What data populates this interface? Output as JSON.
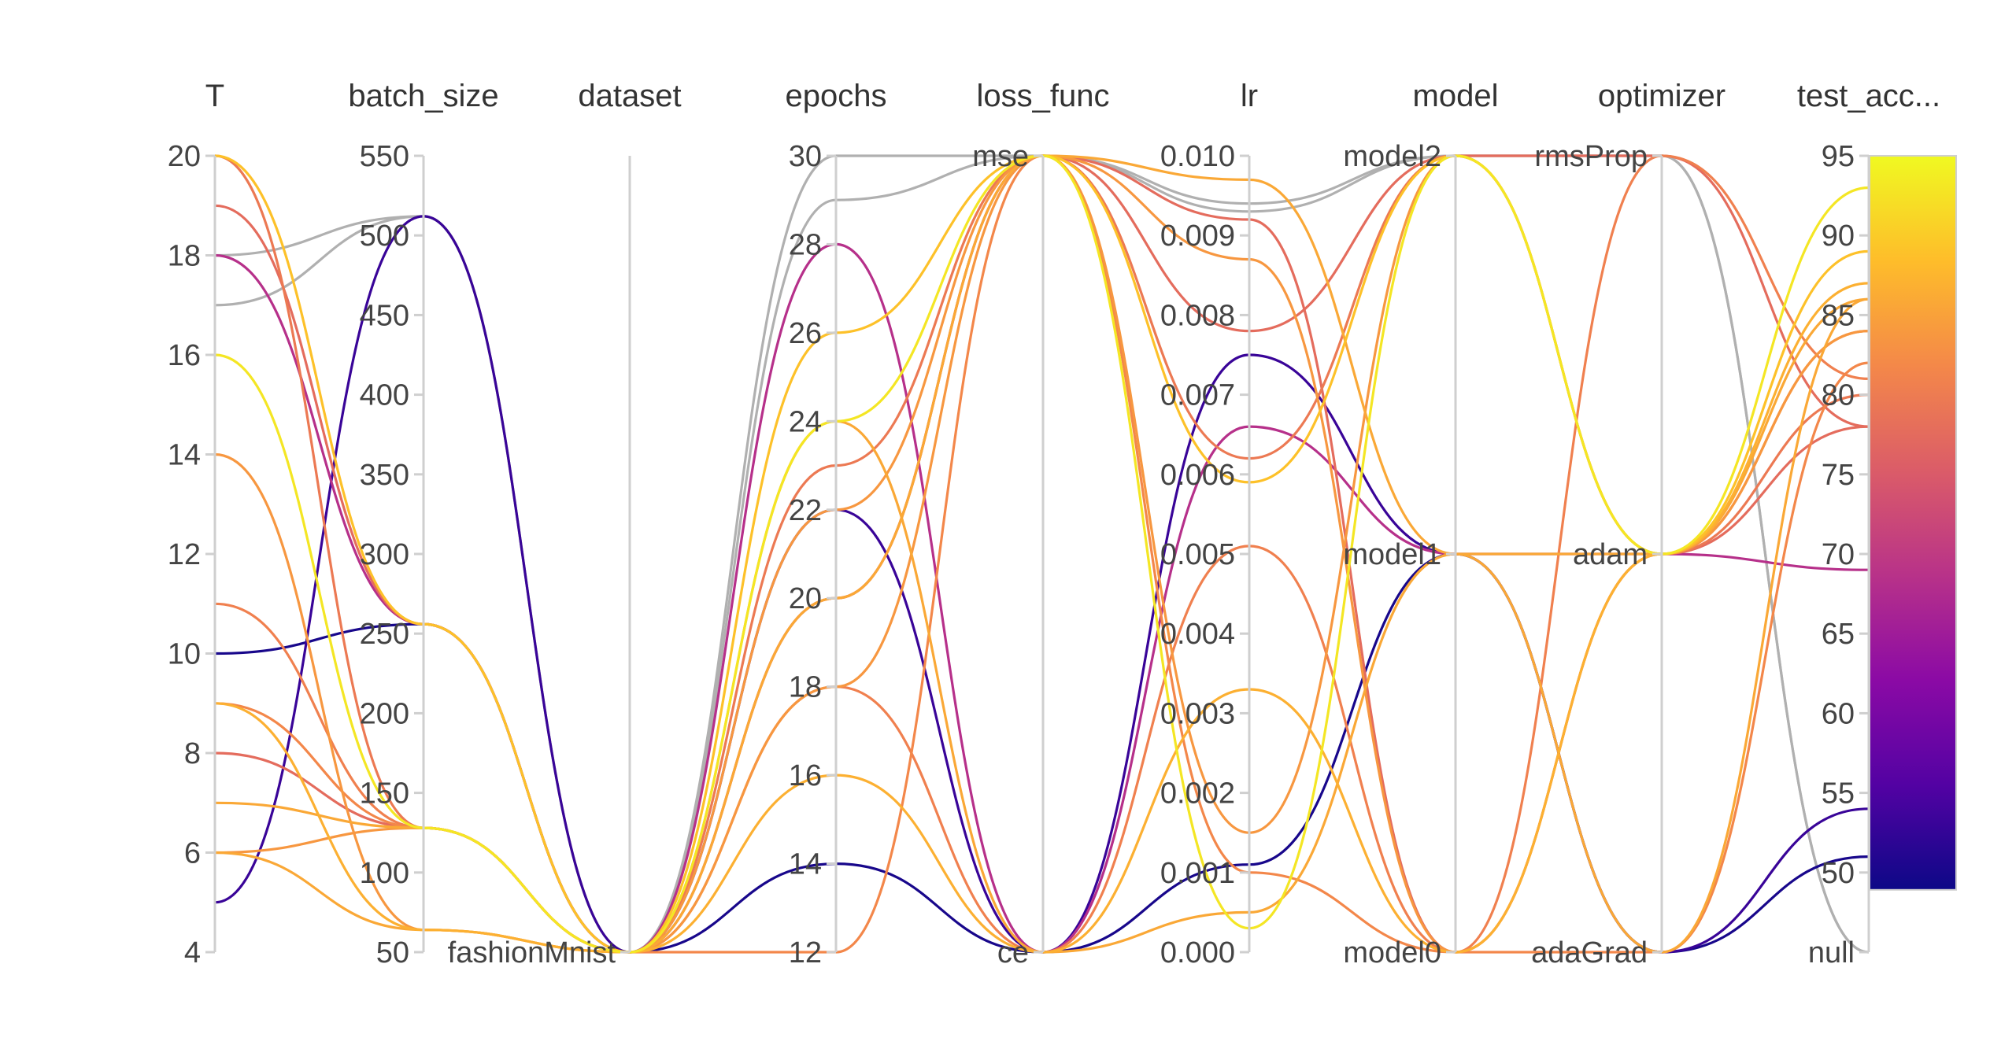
{
  "chart_data": {
    "type": "parallel_coordinates",
    "axes": [
      {
        "name": "T",
        "kind": "numeric",
        "range": [
          4,
          20
        ],
        "ticks": [
          4,
          6,
          8,
          10,
          12,
          14,
          16,
          18,
          20
        ]
      },
      {
        "name": "batch_size",
        "kind": "numeric",
        "range": [
          50,
          550
        ],
        "ticks": [
          50,
          100,
          150,
          200,
          250,
          300,
          350,
          400,
          450,
          500,
          550
        ]
      },
      {
        "name": "dataset",
        "kind": "categorical",
        "categories": [
          "fashionMnist"
        ]
      },
      {
        "name": "epochs",
        "kind": "numeric",
        "range": [
          12,
          30
        ],
        "ticks": [
          12,
          14,
          16,
          18,
          20,
          22,
          24,
          26,
          28,
          30
        ]
      },
      {
        "name": "loss_func",
        "kind": "categorical",
        "categories": [
          "ce",
          "mse"
        ]
      },
      {
        "name": "lr",
        "kind": "numeric",
        "range": [
          0,
          0.01
        ],
        "ticks": [
          0,
          0.001,
          0.002,
          0.003,
          0.004,
          0.005,
          0.006,
          0.007,
          0.008,
          0.009,
          0.01
        ],
        "tick_labels": [
          "0.000",
          "0.001",
          "0.002",
          "0.003",
          "0.004",
          "0.005",
          "0.006",
          "0.007",
          "0.008",
          "0.009",
          "0.010"
        ]
      },
      {
        "name": "model",
        "kind": "categorical",
        "categories": [
          "model0",
          "model1",
          "model2"
        ]
      },
      {
        "name": "optimizer",
        "kind": "categorical",
        "categories": [
          "adaGrad",
          "adam",
          "rmsProp"
        ]
      },
      {
        "name": "test_acc...",
        "kind": "numeric_with_null",
        "range": [
          45,
          95
        ],
        "ticks": [
          50,
          55,
          60,
          65,
          70,
          75,
          80,
          85,
          90,
          95
        ],
        "null_label": "null"
      }
    ],
    "colorbar": {
      "min": 50,
      "max": 95,
      "ticks": [
        50,
        55,
        60,
        65,
        70,
        75,
        80,
        85,
        90,
        95
      ],
      "stops": [
        "#0d0887",
        "#5302a3",
        "#8b0aa5",
        "#b83289",
        "#db5c68",
        "#f48849",
        "#febd2a",
        "#f0f921"
      ],
      "null_color": "#b0b0b0"
    },
    "runs": [
      {
        "T": 18,
        "batch_size": 512,
        "dataset": "fashionMnist",
        "epochs": 30,
        "loss_func": "mse",
        "lr": 0.0094,
        "model": "model2",
        "optimizer": "rmsProp",
        "test_acc": null
      },
      {
        "T": 17,
        "batch_size": 512,
        "dataset": "fashionMnist",
        "epochs": 29,
        "loss_func": "mse",
        "lr": 0.0093,
        "model": "model2",
        "optimizer": "rmsProp",
        "test_acc": null
      },
      {
        "T": 5,
        "batch_size": 512,
        "dataset": "fashionMnist",
        "epochs": 22,
        "loss_func": "ce",
        "lr": 0.0075,
        "model": "model1",
        "optimizer": "adaGrad",
        "test_acc": 54
      },
      {
        "T": 10,
        "batch_size": 256,
        "dataset": "fashionMnist",
        "epochs": 14,
        "loss_func": "ce",
        "lr": 0.0011,
        "model": "model1",
        "optimizer": "adaGrad",
        "test_acc": 51
      },
      {
        "T": 18,
        "batch_size": 256,
        "dataset": "fashionMnist",
        "epochs": 28,
        "loss_func": "ce",
        "lr": 0.0066,
        "model": "model1",
        "optimizer": "adam",
        "test_acc": 69
      },
      {
        "T": 20,
        "batch_size": 128,
        "dataset": "fashionMnist",
        "epochs": 23,
        "loss_func": "mse",
        "lr": 0.0062,
        "model": "model2",
        "optimizer": "adam",
        "test_acc": 80
      },
      {
        "T": 19,
        "batch_size": 256,
        "dataset": "fashionMnist",
        "epochs": 20,
        "loss_func": "mse",
        "lr": 0.0078,
        "model": "model2",
        "optimizer": "rmsProp",
        "test_acc": 78
      },
      {
        "T": 20,
        "batch_size": 256,
        "dataset": "fashionMnist",
        "epochs": 26,
        "loss_func": "mse",
        "lr": 0.0059,
        "model": "model2",
        "optimizer": "adam",
        "test_acc": 89
      },
      {
        "T": 16,
        "batch_size": 128,
        "dataset": "fashionMnist",
        "epochs": 24,
        "loss_func": "mse",
        "lr": 0.0003,
        "model": "model2",
        "optimizer": "adam",
        "test_acc": 93
      },
      {
        "T": 14,
        "batch_size": 64,
        "dataset": "fashionMnist",
        "epochs": 22,
        "loss_func": "mse",
        "lr": 0.0087,
        "model": "model0",
        "optimizer": "adam",
        "test_acc": 84
      },
      {
        "T": 11,
        "batch_size": 128,
        "dataset": "fashionMnist",
        "epochs": 18,
        "loss_func": "ce",
        "lr": 0.0051,
        "model": "model0",
        "optimizer": "rmsProp",
        "test_acc": 81
      },
      {
        "T": 9,
        "batch_size": 64,
        "dataset": "fashionMnist",
        "epochs": 16,
        "loss_func": "ce",
        "lr": 0.0033,
        "model": "model0",
        "optimizer": "adam",
        "test_acc": 87
      },
      {
        "T": 9,
        "batch_size": 128,
        "dataset": "fashionMnist",
        "epochs": 12,
        "loss_func": "mse",
        "lr": 0.001,
        "model": "model0",
        "optimizer": "adaGrad",
        "test_acc": 82
      },
      {
        "T": 8,
        "batch_size": 128,
        "dataset": "fashionMnist",
        "epochs": 20,
        "loss_func": "mse",
        "lr": 0.0092,
        "model": "model0",
        "optimizer": "adam",
        "test_acc": 78
      },
      {
        "T": 7,
        "batch_size": 128,
        "dataset": "fashionMnist",
        "epochs": 20,
        "loss_func": "mse",
        "lr": 0.0097,
        "model": "model1",
        "optimizer": "adam",
        "test_acc": 86
      },
      {
        "T": 6,
        "batch_size": 128,
        "dataset": "fashionMnist",
        "epochs": 18,
        "loss_func": "mse",
        "lr": 0.0015,
        "model": "model2",
        "optimizer": "adam",
        "test_acc": 84
      },
      {
        "T": 6,
        "batch_size": 64,
        "dataset": "fashionMnist",
        "epochs": 24,
        "loss_func": "ce",
        "lr": 0.0005,
        "model": "model1",
        "optimizer": "adaGrad",
        "test_acc": 86
      }
    ]
  }
}
